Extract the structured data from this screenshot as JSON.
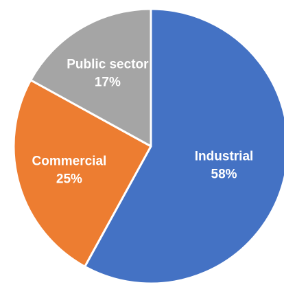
{
  "chart_data": {
    "type": "pie",
    "title": "",
    "start_angle_deg": 0,
    "direction": "clockwise",
    "slices": [
      {
        "label": "Industrial",
        "value": 58,
        "percent_label": "58%",
        "color": "#4472C4"
      },
      {
        "label": "Commercial",
        "value": 25,
        "percent_label": "25%",
        "color": "#ED7D31"
      },
      {
        "label": "Public sector",
        "value": 17,
        "percent_label": "17%",
        "color": "#A5A5A5"
      }
    ]
  }
}
